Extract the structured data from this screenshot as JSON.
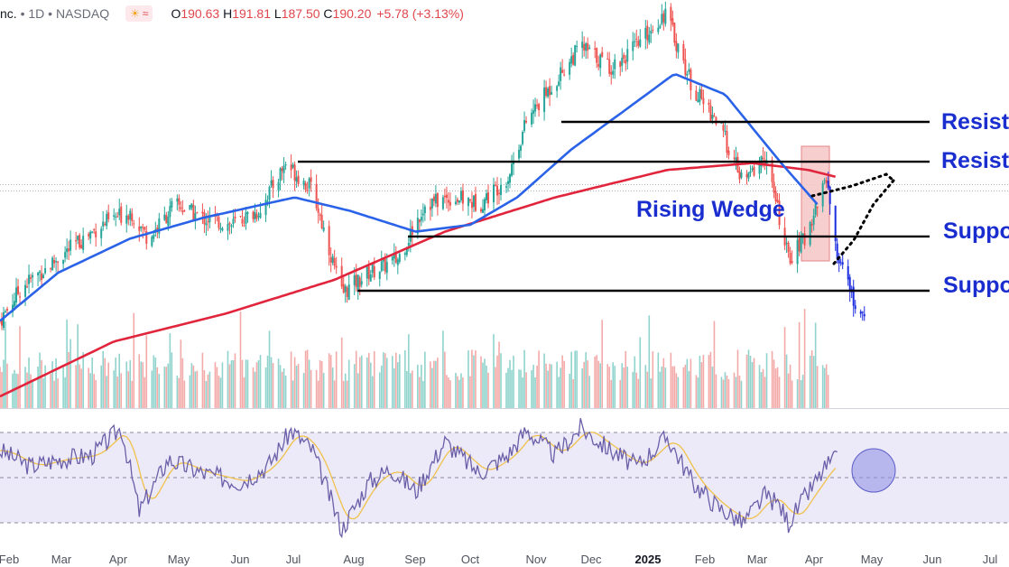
{
  "legend": {
    "symbol": "nc.",
    "interval": "1D",
    "exchange": "NASDAQ",
    "o_label": "O",
    "o": "190.63",
    "h_label": "H",
    "h": "191.81",
    "l_label": "L",
    "l": "187.50",
    "c_label": "C",
    "c": "190.20",
    "change": "+5.78 (+3.13%)",
    "sun_icon": "market-open-icon",
    "wave_icon": "data-feed-icon"
  },
  "colors": {
    "up": "#26a69a",
    "down": "#ef5350",
    "wedge_candles": "#1c2de0",
    "ma_short": "#2a62e8",
    "ma_long": "#e0253d",
    "rsi": "#6a5fa8",
    "rsi_ma": "#f0c24a",
    "rsi_band": "#ece9f9",
    "annotation_text": "#1a2ecf",
    "level_line": "#000000",
    "highlight_box": "#f6c6c6",
    "highlight_border": "#e07070",
    "rsi_circle": "#8c8ee6"
  },
  "chart_data": {
    "type": "line",
    "x_axis_labels": [
      "Feb",
      "Mar",
      "Apr",
      "May",
      "Jun",
      "Jul",
      "Aug",
      "Sep",
      "Oct",
      "Nov",
      "Dec",
      "2025",
      "Feb",
      "Mar",
      "Apr",
      "May",
      "Jun",
      "Jul"
    ],
    "price_series_shape": [
      [
        "2024-01-29",
        163
      ],
      [
        "2024-02-10",
        168
      ],
      [
        "2024-02-25",
        171
      ],
      [
        "2024-03-10",
        174
      ],
      [
        "2024-03-25",
        177
      ],
      [
        "2024-04-10",
        179
      ],
      [
        "2024-04-20",
        175
      ],
      [
        "2024-05-05",
        180
      ],
      [
        "2024-05-20",
        178
      ],
      [
        "2024-06-05",
        177
      ],
      [
        "2024-06-20",
        179
      ],
      [
        "2024-07-05",
        186
      ],
      [
        "2024-07-20",
        182
      ],
      [
        "2024-08-05",
        167
      ],
      [
        "2024-08-20",
        170
      ],
      [
        "2024-09-05",
        172
      ],
      [
        "2024-09-20",
        180
      ],
      [
        "2024-10-05",
        181
      ],
      [
        "2024-10-20",
        180
      ],
      [
        "2024-11-05",
        184
      ],
      [
        "2024-11-15",
        192
      ],
      [
        "2024-12-01",
        198
      ],
      [
        "2024-12-15",
        203
      ],
      [
        "2025-01-01",
        200
      ],
      [
        "2025-01-15",
        203
      ],
      [
        "2025-01-31",
        208
      ],
      [
        "2025-02-15",
        197
      ],
      [
        "2025-03-01",
        192
      ],
      [
        "2025-03-15",
        183
      ],
      [
        "2025-03-27",
        187
      ],
      [
        "2025-04-04",
        178
      ],
      [
        "2025-04-09",
        172
      ],
      [
        "2025-04-18",
        175
      ],
      [
        "2025-04-30",
        184
      ],
      [
        "2025-05-06",
        172
      ],
      [
        "2025-05-14",
        167
      ],
      [
        "2025-05-20",
        163
      ]
    ],
    "ma_short_shape": [
      [
        "2024-01-29",
        163
      ],
      [
        "2024-03-01",
        170
      ],
      [
        "2024-04-10",
        175
      ],
      [
        "2024-05-20",
        178
      ],
      [
        "2024-07-10",
        181
      ],
      [
        "2024-08-10",
        179
      ],
      [
        "2024-09-15",
        176
      ],
      [
        "2024-10-15",
        177
      ],
      [
        "2024-11-10",
        181
      ],
      [
        "2024-12-10",
        188
      ],
      [
        "2025-01-05",
        193
      ],
      [
        "2025-02-05",
        199
      ],
      [
        "2025-03-05",
        196
      ],
      [
        "2025-04-05",
        186
      ],
      [
        "2025-04-25",
        180
      ]
    ],
    "ma_long_shape": [
      [
        "2024-01-29",
        152
      ],
      [
        "2024-04-01",
        160
      ],
      [
        "2024-06-01",
        164
      ],
      [
        "2024-08-01",
        169
      ],
      [
        "2024-10-01",
        176
      ],
      [
        "2024-12-01",
        181
      ],
      [
        "2025-02-01",
        185
      ],
      [
        "2025-03-20",
        186
      ],
      [
        "2025-04-20",
        185
      ],
      [
        "2025-05-05",
        184
      ]
    ],
    "resistance_levels": [
      192.0,
      186.2
    ],
    "support_levels": [
      175.3,
      167.4
    ],
    "annotations": [
      {
        "text": "Resista",
        "kind": "resistance"
      },
      {
        "text": "Resista",
        "kind": "resistance"
      },
      {
        "text": "Rising Wedge",
        "kind": "pattern"
      },
      {
        "text": "Suppo",
        "kind": "support"
      },
      {
        "text": "Suppo",
        "kind": "support"
      }
    ],
    "rsi_levels": [
      70,
      50,
      30
    ],
    "rsi_shape": [
      [
        "2024-01-29",
        62
      ],
      [
        "2024-02-15",
        55
      ],
      [
        "2024-03-01",
        58
      ],
      [
        "2024-03-20",
        60
      ],
      [
        "2024-04-05",
        72
      ],
      [
        "2024-04-15",
        35
      ],
      [
        "2024-05-01",
        58
      ],
      [
        "2024-05-20",
        52
      ],
      [
        "2024-06-10",
        48
      ],
      [
        "2024-06-25",
        55
      ],
      [
        "2024-07-08",
        71
      ],
      [
        "2024-07-20",
        62
      ],
      [
        "2024-08-05",
        27
      ],
      [
        "2024-08-20",
        48
      ],
      [
        "2024-09-01",
        54
      ],
      [
        "2024-09-15",
        44
      ],
      [
        "2024-10-01",
        66
      ],
      [
        "2024-10-20",
        52
      ],
      [
        "2024-11-05",
        60
      ],
      [
        "2024-11-15",
        71
      ],
      [
        "2024-12-01",
        60
      ],
      [
        "2024-12-15",
        72
      ],
      [
        "2025-01-01",
        62
      ],
      [
        "2025-01-15",
        55
      ],
      [
        "2025-02-01",
        68
      ],
      [
        "2025-02-15",
        48
      ],
      [
        "2025-03-01",
        37
      ],
      [
        "2025-03-15",
        30
      ],
      [
        "2025-03-27",
        42
      ],
      [
        "2025-04-04",
        38
      ],
      [
        "2025-04-09",
        30
      ],
      [
        "2025-04-18",
        41
      ],
      [
        "2025-05-01",
        56
      ],
      [
        "2025-05-06",
        58
      ]
    ],
    "grid": false,
    "legend_position": "top-left"
  }
}
